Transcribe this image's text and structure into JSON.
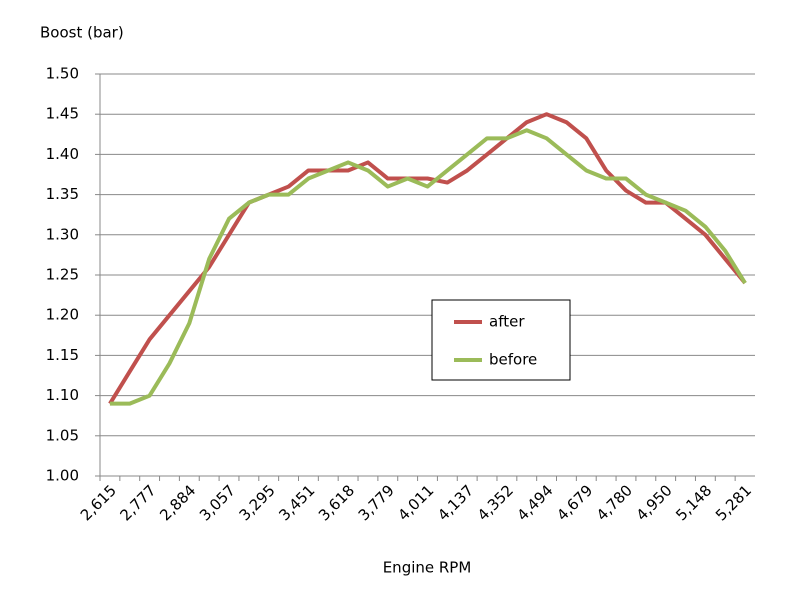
{
  "chart_data": {
    "type": "line",
    "y_label": "Boost (bar)",
    "x_label": "Engine RPM",
    "categories": [
      "2,615",
      null,
      "2,777",
      null,
      "2,884",
      null,
      "3,057",
      null,
      "3,295",
      null,
      "3,451",
      null,
      "3,618",
      null,
      "3,779",
      null,
      "4,011",
      null,
      "4,137",
      null,
      "4,352",
      null,
      "4,494",
      null,
      "4,679",
      null,
      "4,780",
      null,
      "4,950",
      null,
      "5,148",
      null,
      "5,281"
    ],
    "series": [
      {
        "name": "after",
        "color": "#c0504d",
        "values": [
          1.09,
          1.13,
          1.17,
          1.2,
          1.23,
          1.26,
          1.3,
          1.34,
          1.35,
          1.36,
          1.38,
          1.38,
          1.38,
          1.39,
          1.37,
          1.37,
          1.37,
          1.365,
          1.38,
          1.4,
          1.42,
          1.44,
          1.45,
          1.44,
          1.42,
          1.38,
          1.355,
          1.34,
          1.34,
          1.32,
          1.3,
          1.27,
          1.24
        ]
      },
      {
        "name": "before",
        "color": "#9bbb59",
        "values": [
          1.09,
          1.09,
          1.1,
          1.14,
          1.19,
          1.27,
          1.32,
          1.34,
          1.35,
          1.35,
          1.37,
          1.38,
          1.39,
          1.38,
          1.36,
          1.37,
          1.36,
          1.38,
          1.4,
          1.42,
          1.42,
          1.43,
          1.42,
          1.4,
          1.38,
          1.37,
          1.37,
          1.35,
          1.34,
          1.33,
          1.31,
          1.28,
          1.24
        ]
      }
    ],
    "ylim": [
      1.0,
      1.5
    ],
    "yticks": [
      {
        "value": 1.0,
        "label": "1.00"
      },
      {
        "value": 1.05,
        "label": "1.05"
      },
      {
        "value": 1.1,
        "label": "1.10"
      },
      {
        "value": 1.15,
        "label": "1.15"
      },
      {
        "value": 1.2,
        "label": "1.20"
      },
      {
        "value": 1.25,
        "label": "1.25"
      },
      {
        "value": 1.3,
        "label": "1.30"
      },
      {
        "value": 1.35,
        "label": "1.35"
      },
      {
        "value": 1.4,
        "label": "1.40"
      },
      {
        "value": 1.45,
        "label": "1.45"
      },
      {
        "value": 1.5,
        "label": "1.50"
      }
    ],
    "grid": true,
    "legend": "center-right"
  }
}
